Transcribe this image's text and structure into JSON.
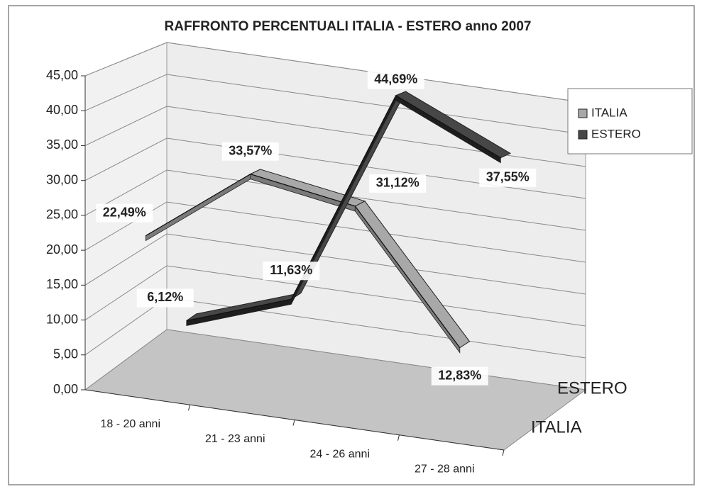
{
  "chart_data": {
    "type": "line3d",
    "title": "RAFFRONTO PERCENTUALI  ITALIA - ESTERO anno 2007",
    "categories": [
      "18 - 20 anni",
      "21 - 23 anni",
      "24 - 26 anni",
      "27 - 28 anni"
    ],
    "series": [
      {
        "name": "ITALIA",
        "color": "#a8a8a8",
        "values": [
          22.49,
          33.57,
          31.12,
          12.83
        ],
        "value_labels": [
          "22,49%",
          "33,57%",
          "31,12%",
          "12,83%"
        ]
      },
      {
        "name": "ESTERO",
        "color": "#474747",
        "values": [
          6.12,
          11.63,
          44.69,
          37.55
        ],
        "value_labels": [
          "6,12%",
          "11,63%",
          "44,69%",
          "37,55%"
        ]
      }
    ],
    "ylim": [
      0,
      45
    ],
    "yticks": [
      {
        "value": 0,
        "label": "0,00"
      },
      {
        "value": 5,
        "label": "5,00"
      },
      {
        "value": 10,
        "label": "10,00"
      },
      {
        "value": 15,
        "label": "15,00"
      },
      {
        "value": 20,
        "label": "20,00"
      },
      {
        "value": 25,
        "label": "25,00"
      },
      {
        "value": 30,
        "label": "30,00"
      },
      {
        "value": 35,
        "label": "35,00"
      },
      {
        "value": 40,
        "label": "40,00"
      },
      {
        "value": 45,
        "label": "45,00"
      }
    ],
    "grid": true,
    "legend": "right"
  }
}
